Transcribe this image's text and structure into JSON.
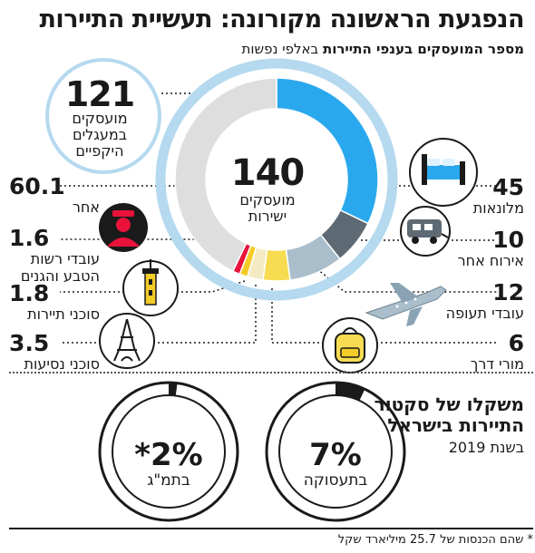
{
  "header": {
    "title": "הנפגעת הראשונה מקורונה: תעשיית התיירות",
    "subtitle_bold": "מספר המועסקים בענפי התיירות",
    "subtitle_rest": " באלפי נפשות"
  },
  "chart_data": [
    {
      "type": "pie",
      "title": "מספר המועסקים בענפי התיירות באלפי נפשות",
      "center": {
        "value": "140",
        "label_line1": "מועסקים",
        "label_line2": "ישירות"
      },
      "outer": {
        "value": "121",
        "label_line1": "מועסקים",
        "label_line2": "במעגלים",
        "label_line3": "היקפיים"
      },
      "slices": [
        {
          "name": "מלונאות",
          "value": 45,
          "value_label": "45",
          "color": "#2aa8ee"
        },
        {
          "name": "אירוח אחר",
          "value": 10,
          "value_label": "10",
          "color": "#5e6a73"
        },
        {
          "name": "עובדי תעופה",
          "value": 12,
          "value_label": "12",
          "color": "#a9bdcb"
        },
        {
          "name": "מורי דרך",
          "value": 6,
          "value_label": "6",
          "color": "#f7dc52"
        },
        {
          "name": "סוכני נסיעות",
          "value": 3.5,
          "value_label": "3.5",
          "color": "#f4ebc4"
        },
        {
          "name": "סוכני תיירות",
          "value": 1.8,
          "value_label": "1.8",
          "color": "#f3cc28"
        },
        {
          "name": "עובדי רשות הטבע והגנים",
          "value": 1.6,
          "value_label": "1.6",
          "color": "#e8123a"
        },
        {
          "name": "אחר",
          "value": 60.1,
          "value_label": "60.1",
          "color": "#dedede"
        }
      ],
      "labels": {
        "hotels": {
          "value": "45",
          "name": "מלונאות"
        },
        "other_lodging": {
          "value": "10",
          "name": "אירוח אחר"
        },
        "aviation": {
          "value": "12",
          "name": "עובדי תעופה"
        },
        "guides": {
          "value": "6",
          "name": "מורי דרך"
        },
        "other": {
          "value": "60.1",
          "name": "אחר"
        },
        "parks": {
          "value": "1.6",
          "name_line1": "עובדי רשות",
          "name_line2": "הטבע והגנים"
        },
        "tour_agents": {
          "value": "1.8",
          "name": "סוכני תיירות"
        },
        "travel_agents": {
          "value": "3.5",
          "name": "סוכני נסיעות"
        }
      },
      "colors": {
        "ring": "#b5d9ef"
      }
    },
    {
      "type": "pie",
      "title": "משקלו של סקטור התיירות בישראל",
      "title_line1": "משקלו של סקטור",
      "title_line2": "התיירות בישראל",
      "year_label": "בשנת 2019",
      "items": [
        {
          "name": "בתעסוקה",
          "value": 7,
          "value_label": "7%"
        },
        {
          "name": "בתמ\"ג",
          "value": 2,
          "value_label": "*2%"
        }
      ]
    }
  ],
  "footnote": "* שהם הכנסות של 25.7 מיליארד שקל",
  "icons": [
    "bed-icon",
    "caravan-icon",
    "airplane-icon",
    "backpack-icon",
    "eiffel-tower-icon",
    "tower-icon",
    "ranger-icon"
  ]
}
